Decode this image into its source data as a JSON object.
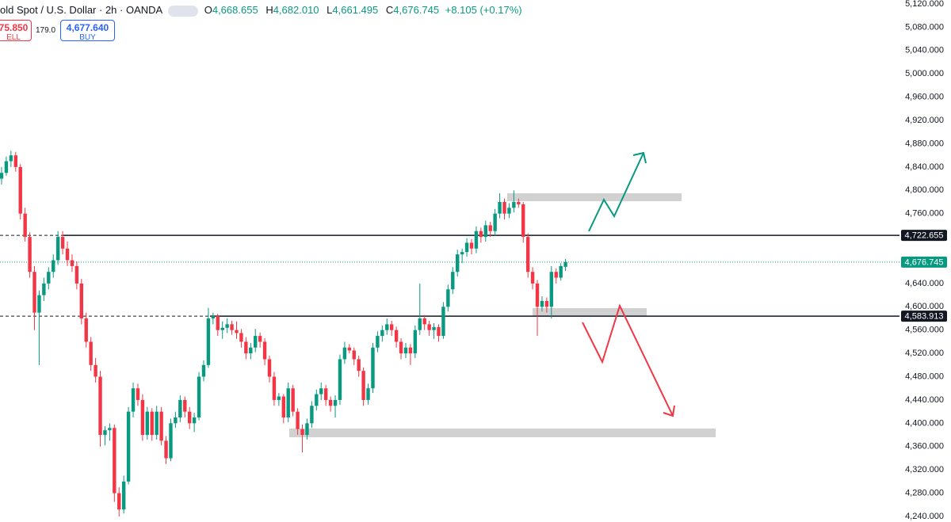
{
  "header": {
    "symbol": "old Spot / U.S. Dollar · 2h · OANDA",
    "ohlc": [
      {
        "label": "O",
        "value": "4,668.655"
      },
      {
        "label": "H",
        "value": "4,682.010"
      },
      {
        "label": "L",
        "value": "4,661.495"
      },
      {
        "label": "C",
        "value": "4,676.745"
      }
    ],
    "change": "+8.105 (+0.17%)",
    "sell": {
      "price": "75.850",
      "label": "ELL"
    },
    "spread": "179.0",
    "buy": {
      "price": "4,677.640",
      "label": "BUY"
    }
  },
  "chart_data": {
    "type": "candlestick",
    "up_color": "#089981",
    "down_color": "#f23645",
    "ylim": [
      4240,
      5120
    ],
    "yticks": [
      {
        "value": 4240,
        "label": "4,240.000"
      },
      {
        "value": 4280,
        "label": "4,280.000"
      },
      {
        "value": 4320,
        "label": "4,320.000"
      },
      {
        "value": 4360,
        "label": "4,360.000"
      },
      {
        "value": 4400,
        "label": "4,400.000"
      },
      {
        "value": 4440,
        "label": "4,440.000"
      },
      {
        "value": 4480,
        "label": "4,480.000"
      },
      {
        "value": 4520,
        "label": "4,520.000"
      },
      {
        "value": 4560,
        "label": "4,560.000"
      },
      {
        "value": 4600,
        "label": "4,600.000"
      },
      {
        "value": 4640,
        "label": "4,640.000"
      },
      {
        "value": 4680,
        "label": "4,680.000"
      },
      {
        "value": 4720,
        "label": "4,720.000"
      },
      {
        "value": 4760,
        "label": "4,760.000"
      },
      {
        "value": 4800,
        "label": "4,800.000"
      },
      {
        "value": 4840,
        "label": "4,840.000"
      },
      {
        "value": 4880,
        "label": "4,880.000"
      },
      {
        "value": 4920,
        "label": "4,920.000"
      },
      {
        "value": 4960,
        "label": "4,960.000"
      },
      {
        "value": 5000,
        "label": "5,000.000"
      },
      {
        "value": 5040,
        "label": "5,040.000"
      },
      {
        "value": 5080,
        "label": "5,080.000"
      },
      {
        "value": 5120,
        "label": "5,120.000"
      }
    ],
    "levels": [
      {
        "value": 4722.655,
        "label": "4,722.655"
      },
      {
        "value": 4583.913,
        "label": "4,583.913"
      }
    ],
    "last_price": {
      "value": 4676.745,
      "label": "4,676.745"
    },
    "candles": [
      [
        4820,
        4840,
        4810,
        4830
      ],
      [
        4830,
        4858,
        4825,
        4850
      ],
      [
        4850,
        4868,
        4840,
        4860
      ],
      [
        4860,
        4866,
        4832,
        4840
      ],
      [
        4840,
        4845,
        4750,
        4760
      ],
      [
        4760,
        4770,
        4712,
        4720
      ],
      [
        4720,
        4728,
        4650,
        4660
      ],
      [
        4660,
        4670,
        4560,
        4590
      ],
      [
        4590,
        4628,
        4500,
        4620
      ],
      [
        4620,
        4650,
        4610,
        4640
      ],
      [
        4640,
        4668,
        4630,
        4660
      ],
      [
        4660,
        4690,
        4650,
        4680
      ],
      [
        4680,
        4730,
        4672,
        4720
      ],
      [
        4720,
        4730,
        4690,
        4700
      ],
      [
        4700,
        4712,
        4670,
        4680
      ],
      [
        4680,
        4690,
        4660,
        4670
      ],
      [
        4670,
        4678,
        4630,
        4640
      ],
      [
        4640,
        4648,
        4570,
        4580
      ],
      [
        4580,
        4590,
        4530,
        4540
      ],
      [
        4540,
        4548,
        4490,
        4500
      ],
      [
        4500,
        4512,
        4470,
        4480
      ],
      [
        4480,
        4490,
        4360,
        4380
      ],
      [
        4380,
        4395,
        4362,
        4388
      ],
      [
        4388,
        4400,
        4370,
        4392
      ],
      [
        4392,
        4398,
        4265,
        4280
      ],
      [
        4280,
        4290,
        4240,
        4252
      ],
      [
        4252,
        4310,
        4245,
        4300
      ],
      [
        4300,
        4428,
        4295,
        4420
      ],
      [
        4420,
        4470,
        4410,
        4460
      ],
      [
        4460,
        4468,
        4430,
        4440
      ],
      [
        4440,
        4450,
        4370,
        4380
      ],
      [
        4380,
        4428,
        4372,
        4420
      ],
      [
        4420,
        4426,
        4370,
        4380
      ],
      [
        4380,
        4430,
        4372,
        4420
      ],
      [
        4420,
        4428,
        4362,
        4370
      ],
      [
        4370,
        4378,
        4330,
        4340
      ],
      [
        4340,
        4408,
        4335,
        4400
      ],
      [
        4400,
        4420,
        4392,
        4410
      ],
      [
        4410,
        4448,
        4402,
        4440
      ],
      [
        4440,
        4446,
        4410,
        4420
      ],
      [
        4420,
        4428,
        4390,
        4400
      ],
      [
        4400,
        4418,
        4385,
        4410
      ],
      [
        4410,
        4488,
        4405,
        4480
      ],
      [
        4480,
        4508,
        4472,
        4500
      ],
      [
        4500,
        4598,
        4495,
        4580
      ],
      [
        4580,
        4590,
        4570,
        4584
      ],
      [
        4584,
        4588,
        4550,
        4560
      ],
      [
        4560,
        4575,
        4545,
        4564
      ],
      [
        4564,
        4580,
        4555,
        4570
      ],
      [
        4570,
        4576,
        4552,
        4560
      ],
      [
        4560,
        4575,
        4545,
        4555
      ],
      [
        4555,
        4562,
        4530,
        4540
      ],
      [
        4540,
        4548,
        4510,
        4520
      ],
      [
        4520,
        4538,
        4510,
        4530
      ],
      [
        4530,
        4562,
        4522,
        4550
      ],
      [
        4550,
        4556,
        4530,
        4540
      ],
      [
        4540,
        4546,
        4500,
        4510
      ],
      [
        4510,
        4516,
        4470,
        4480
      ],
      [
        4480,
        4488,
        4430,
        4440
      ],
      [
        4440,
        4452,
        4430,
        4446
      ],
      [
        4446,
        4450,
        4400,
        4410
      ],
      [
        4410,
        4470,
        4402,
        4460
      ],
      [
        4460,
        4466,
        4412,
        4420
      ],
      [
        4420,
        4426,
        4380,
        4390
      ],
      [
        4390,
        4398,
        4350,
        4380
      ],
      [
        4380,
        4408,
        4372,
        4400
      ],
      [
        4400,
        4438,
        4392,
        4430
      ],
      [
        4430,
        4458,
        4422,
        4450
      ],
      [
        4450,
        4470,
        4440,
        4460
      ],
      [
        4460,
        4466,
        4430,
        4440
      ],
      [
        4440,
        4446,
        4420,
        4430
      ],
      [
        4430,
        4448,
        4410,
        4440
      ],
      [
        4440,
        4518,
        4432,
        4510
      ],
      [
        4510,
        4540,
        4502,
        4530
      ],
      [
        4530,
        4536,
        4520,
        4525
      ],
      [
        4525,
        4530,
        4500,
        4510
      ],
      [
        4510,
        4516,
        4480,
        4490
      ],
      [
        4490,
        4496,
        4430,
        4440
      ],
      [
        4440,
        4468,
        4432,
        4460
      ],
      [
        4460,
        4538,
        4452,
        4530
      ],
      [
        4530,
        4558,
        4522,
        4550
      ],
      [
        4550,
        4568,
        4540,
        4560
      ],
      [
        4560,
        4580,
        4552,
        4570
      ],
      [
        4570,
        4576,
        4550,
        4560
      ],
      [
        4560,
        4566,
        4530,
        4540
      ],
      [
        4540,
        4546,
        4510,
        4520
      ],
      [
        4520,
        4538,
        4512,
        4530
      ],
      [
        4530,
        4536,
        4500,
        4520
      ],
      [
        4520,
        4568,
        4512,
        4560
      ],
      [
        4560,
        4640,
        4552,
        4580
      ],
      [
        4580,
        4586,
        4560,
        4570
      ],
      [
        4570,
        4576,
        4550,
        4560
      ],
      [
        4560,
        4572,
        4545,
        4565
      ],
      [
        4565,
        4570,
        4540,
        4550
      ],
      [
        4550,
        4608,
        4545,
        4600
      ],
      [
        4600,
        4638,
        4592,
        4630
      ],
      [
        4630,
        4668,
        4622,
        4660
      ],
      [
        4660,
        4698,
        4652,
        4690
      ],
      [
        4690,
        4700,
        4675,
        4694
      ],
      [
        4694,
        4718,
        4686,
        4710
      ],
      [
        4710,
        4716,
        4690,
        4700
      ],
      [
        4700,
        4738,
        4692,
        4730
      ],
      [
        4730,
        4736,
        4710,
        4720
      ],
      [
        4720,
        4748,
        4712,
        4740
      ],
      [
        4740,
        4746,
        4720,
        4730
      ],
      [
        4730,
        4768,
        4722,
        4760
      ],
      [
        4760,
        4795,
        4752,
        4780
      ],
      [
        4780,
        4786,
        4750,
        4760
      ],
      [
        4760,
        4778,
        4752,
        4770
      ],
      [
        4770,
        4800,
        4762,
        4780
      ],
      [
        4780,
        4786,
        4770,
        4776
      ],
      [
        4776,
        4780,
        4710,
        4720
      ],
      [
        4720,
        4726,
        4650,
        4660
      ],
      [
        4660,
        4668,
        4630,
        4640
      ],
      [
        4640,
        4646,
        4550,
        4600
      ],
      [
        4600,
        4618,
        4592,
        4610
      ],
      [
        4610,
        4616,
        4590,
        4600
      ],
      [
        4600,
        4670,
        4580,
        4660
      ],
      [
        4660,
        4666,
        4640,
        4650
      ],
      [
        4650,
        4675,
        4645,
        4670
      ],
      [
        4668.655,
        4682.01,
        4661.495,
        4676.745
      ]
    ]
  }
}
